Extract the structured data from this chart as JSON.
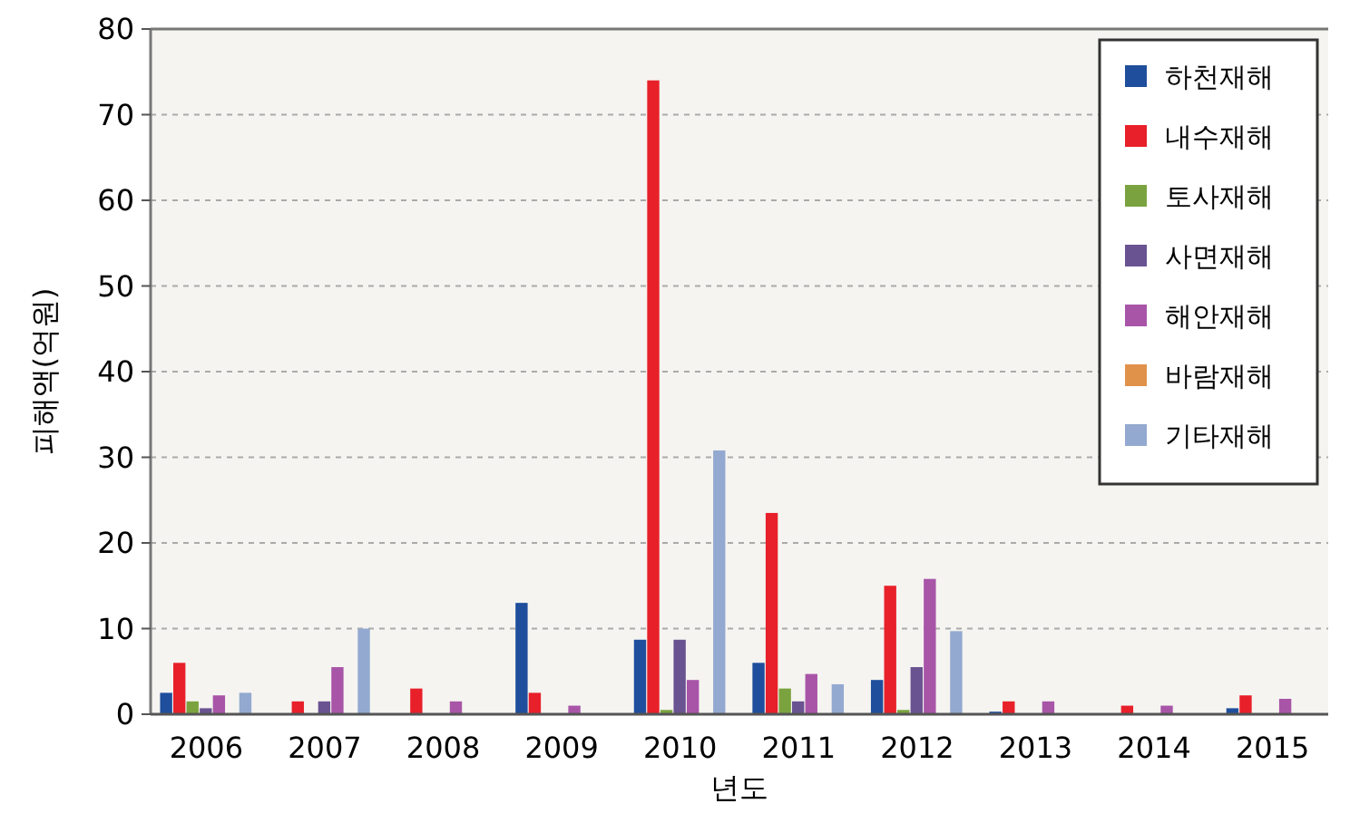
{
  "chart_data": {
    "type": "bar",
    "xlabel": "년도",
    "ylabel": "피해액(억원)",
    "categories": [
      "2006",
      "2007",
      "2008",
      "2009",
      "2010",
      "2011",
      "2012",
      "2013",
      "2014",
      "2015"
    ],
    "series": [
      {
        "name": "하천재해",
        "color": "#1f4e9c",
        "values": [
          2.5,
          0,
          0,
          13,
          8.7,
          6,
          4,
          0.3,
          0,
          0.7
        ]
      },
      {
        "name": "내수재해",
        "color": "#e8202a",
        "values": [
          6,
          1.5,
          3,
          2.5,
          74,
          23.5,
          15,
          1.5,
          1,
          2.2
        ]
      },
      {
        "name": "토사재해",
        "color": "#7aa33f",
        "values": [
          1.5,
          0,
          0,
          0,
          0.5,
          3,
          0.5,
          0,
          0,
          0
        ]
      },
      {
        "name": "사면재해",
        "color": "#6a5391",
        "values": [
          0.7,
          1.5,
          0,
          0,
          8.7,
          1.5,
          5.5,
          0,
          0,
          0
        ]
      },
      {
        "name": "해안재해",
        "color": "#a855a8",
        "values": [
          2.2,
          5.5,
          1.5,
          1,
          4,
          4.7,
          15.8,
          1.5,
          1,
          1.8
        ]
      },
      {
        "name": "바람재해",
        "color": "#e0924a",
        "values": [
          0,
          0,
          0,
          0,
          0,
          0,
          0,
          0,
          0,
          0
        ]
      },
      {
        "name": "기타재해",
        "color": "#93a9d0",
        "values": [
          2.5,
          10,
          0,
          0,
          30.8,
          3.5,
          9.7,
          0,
          0,
          0
        ]
      }
    ],
    "ylim": [
      0,
      80
    ],
    "yticks": [
      0,
      10,
      20,
      30,
      40,
      50,
      60,
      70,
      80
    ],
    "grid": "y",
    "legend": "top right"
  }
}
